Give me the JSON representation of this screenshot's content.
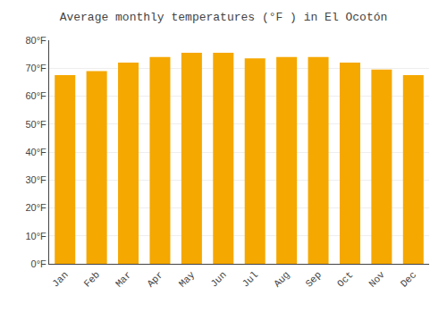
{
  "chart_data": {
    "type": "bar",
    "title": "Average monthly temperatures (°F ) in El Ocotón",
    "categories": [
      "Jan",
      "Feb",
      "Mar",
      "Apr",
      "May",
      "Jun",
      "Jul",
      "Aug",
      "Sep",
      "Oct",
      "Nov",
      "Dec"
    ],
    "values": [
      67.5,
      69.0,
      72.0,
      74.0,
      75.5,
      75.5,
      73.5,
      74.0,
      74.0,
      72.0,
      69.5,
      67.5
    ],
    "color": "#F5A800",
    "ylim": [
      0,
      80
    ],
    "yticks": [
      {
        "value": 0,
        "label": "0°F"
      },
      {
        "value": 10,
        "label": "10°F"
      },
      {
        "value": 20,
        "label": "20°F"
      },
      {
        "value": 30,
        "label": "30°F"
      },
      {
        "value": 40,
        "label": "40°F"
      },
      {
        "value": 50,
        "label": "50°F"
      },
      {
        "value": 60,
        "label": "60°F"
      },
      {
        "value": 70,
        "label": "70°F"
      },
      {
        "value": 80,
        "label": "80°F"
      }
    ],
    "grid": true
  }
}
